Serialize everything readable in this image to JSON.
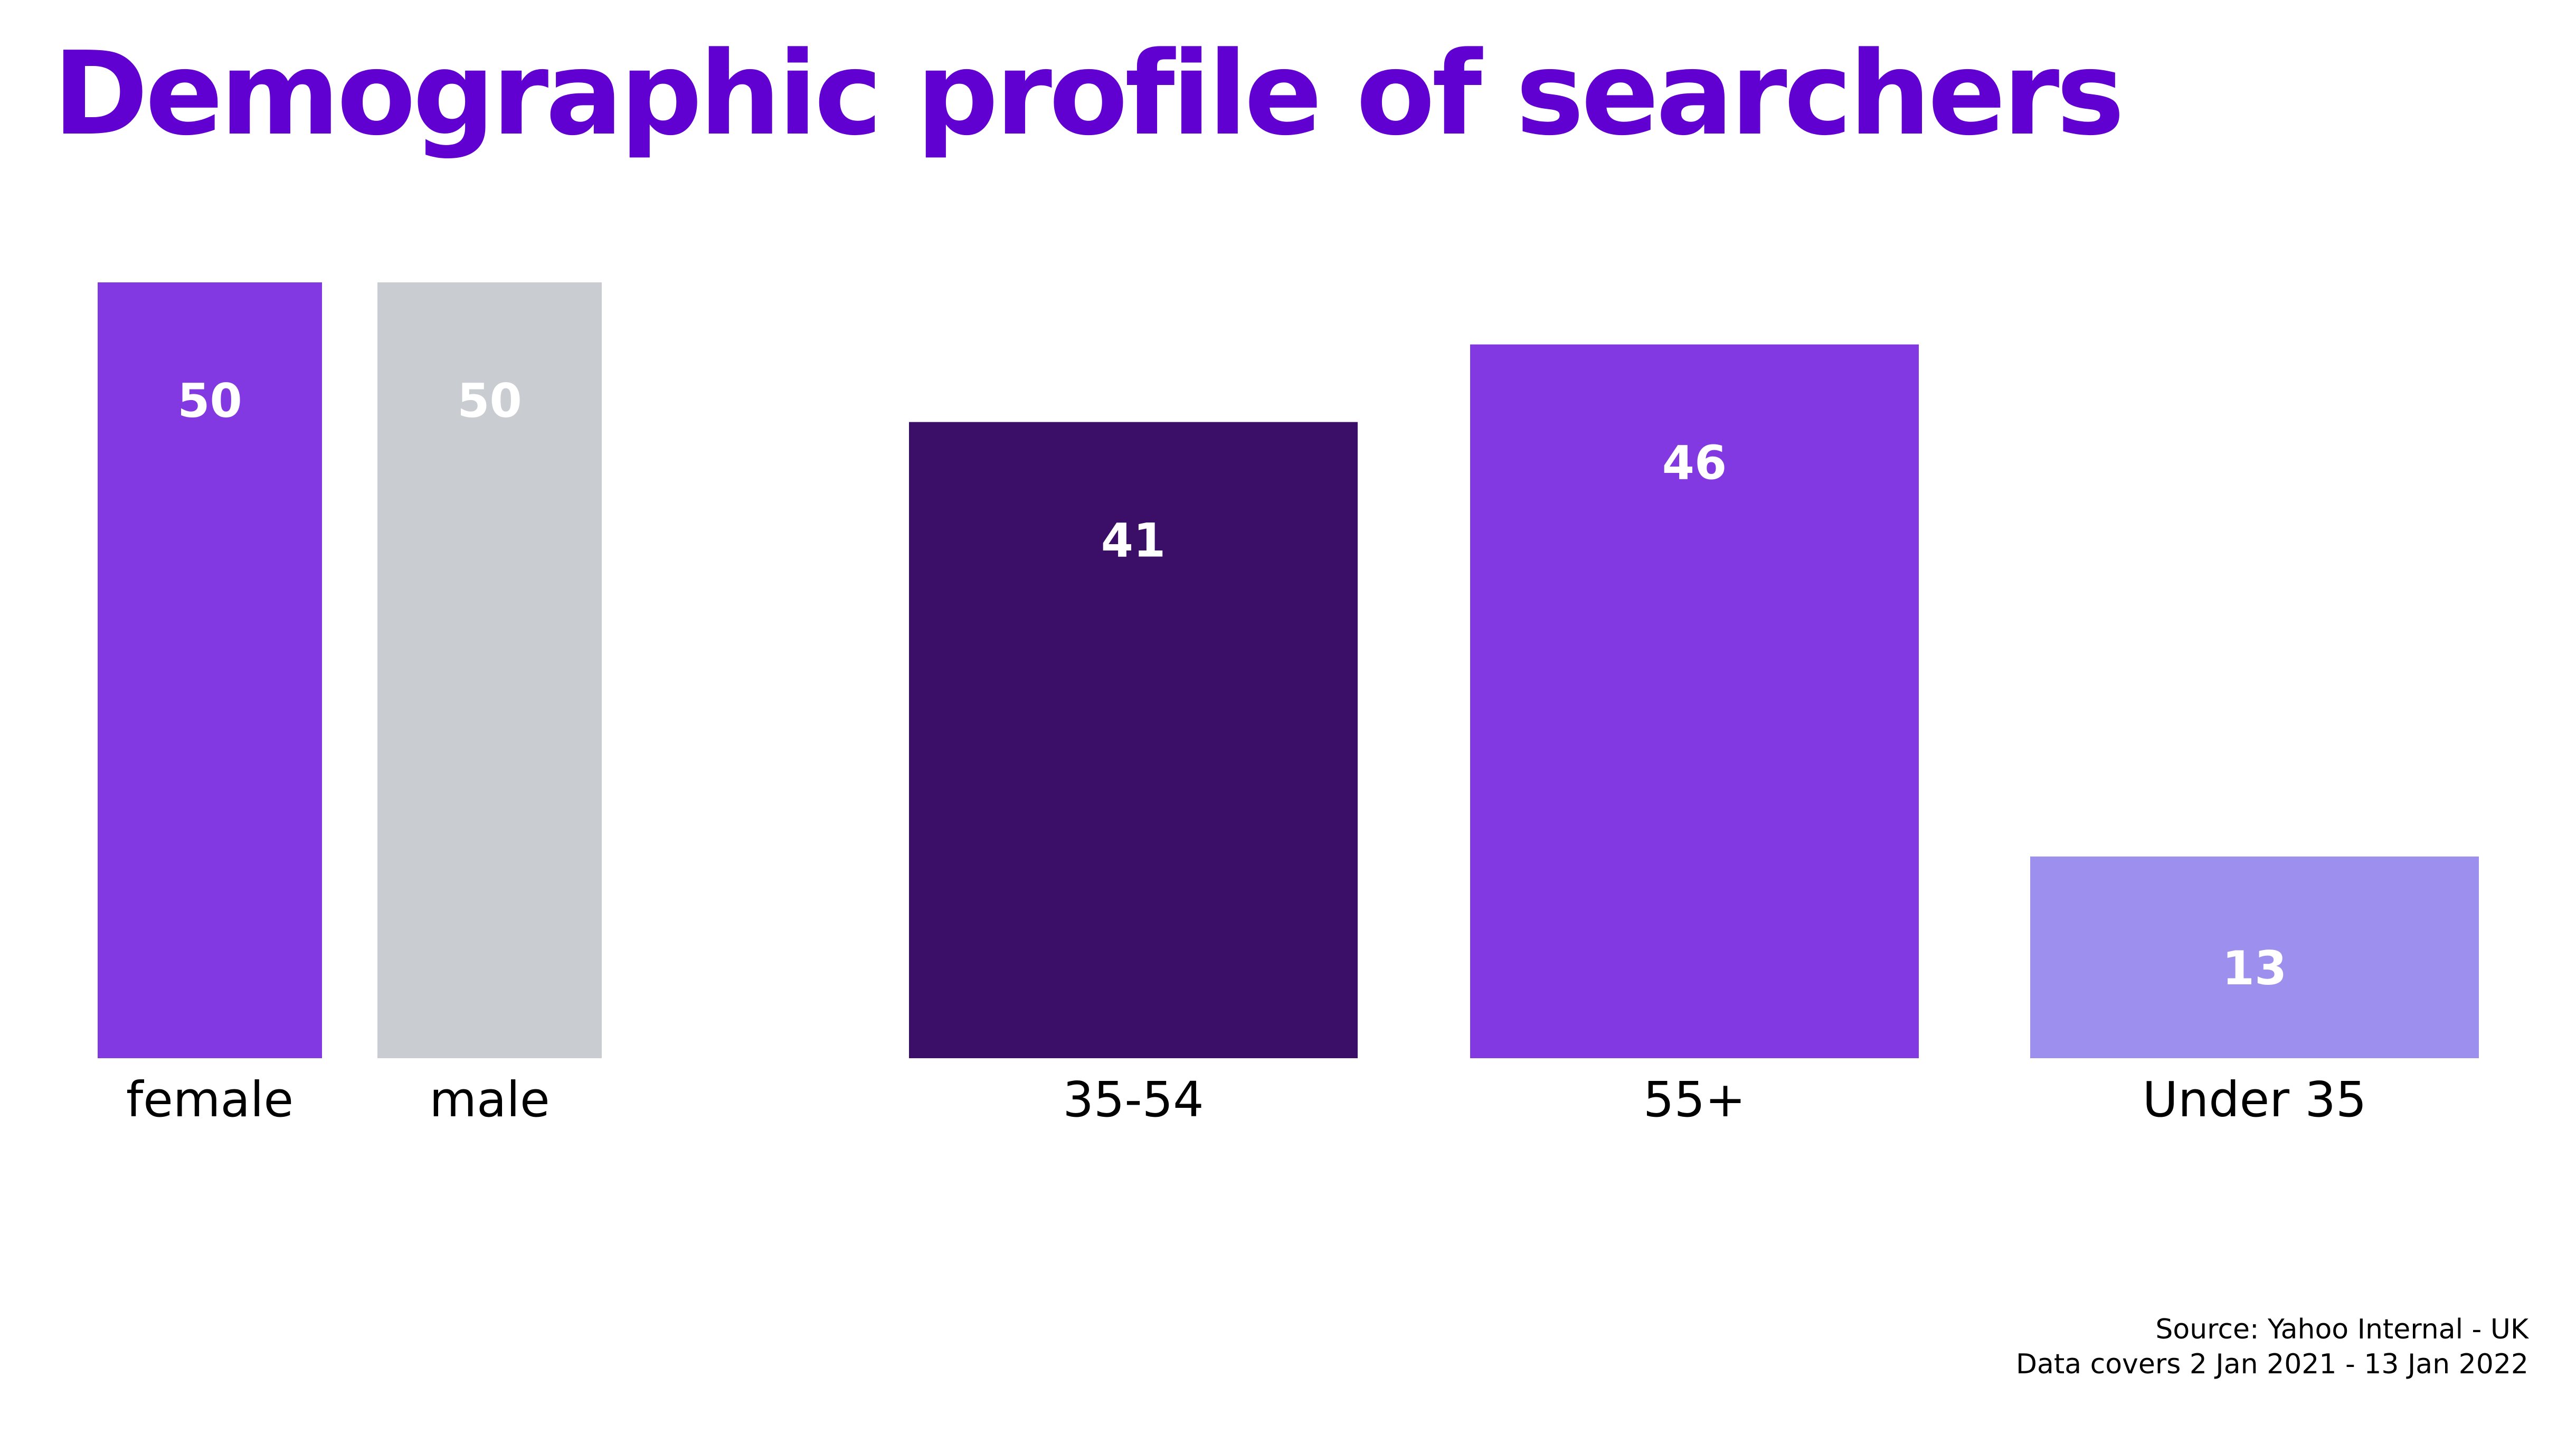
{
  "title": "Demographic profile of searchers",
  "chart_data": {
    "type": "bar",
    "title": "Demographic profile of searchers",
    "ylim": [
      0,
      50
    ],
    "grid": false,
    "groups": [
      {
        "categories": [
          "female",
          "male"
        ],
        "values": [
          50,
          50
        ],
        "colors": [
          "#8339e2",
          "#c9cdd1"
        ]
      },
      {
        "categories": [
          "35-54",
          "55+",
          "Under 35"
        ],
        "values": [
          41,
          46,
          13
        ],
        "colors": [
          "#3b0f67",
          "#8339e2",
          "#9c8fee"
        ]
      }
    ]
  },
  "source": {
    "line1": "Source: Yahoo Internal - UK",
    "line2": "Data covers 2 Jan 2021 - 13 Jan 2022"
  }
}
